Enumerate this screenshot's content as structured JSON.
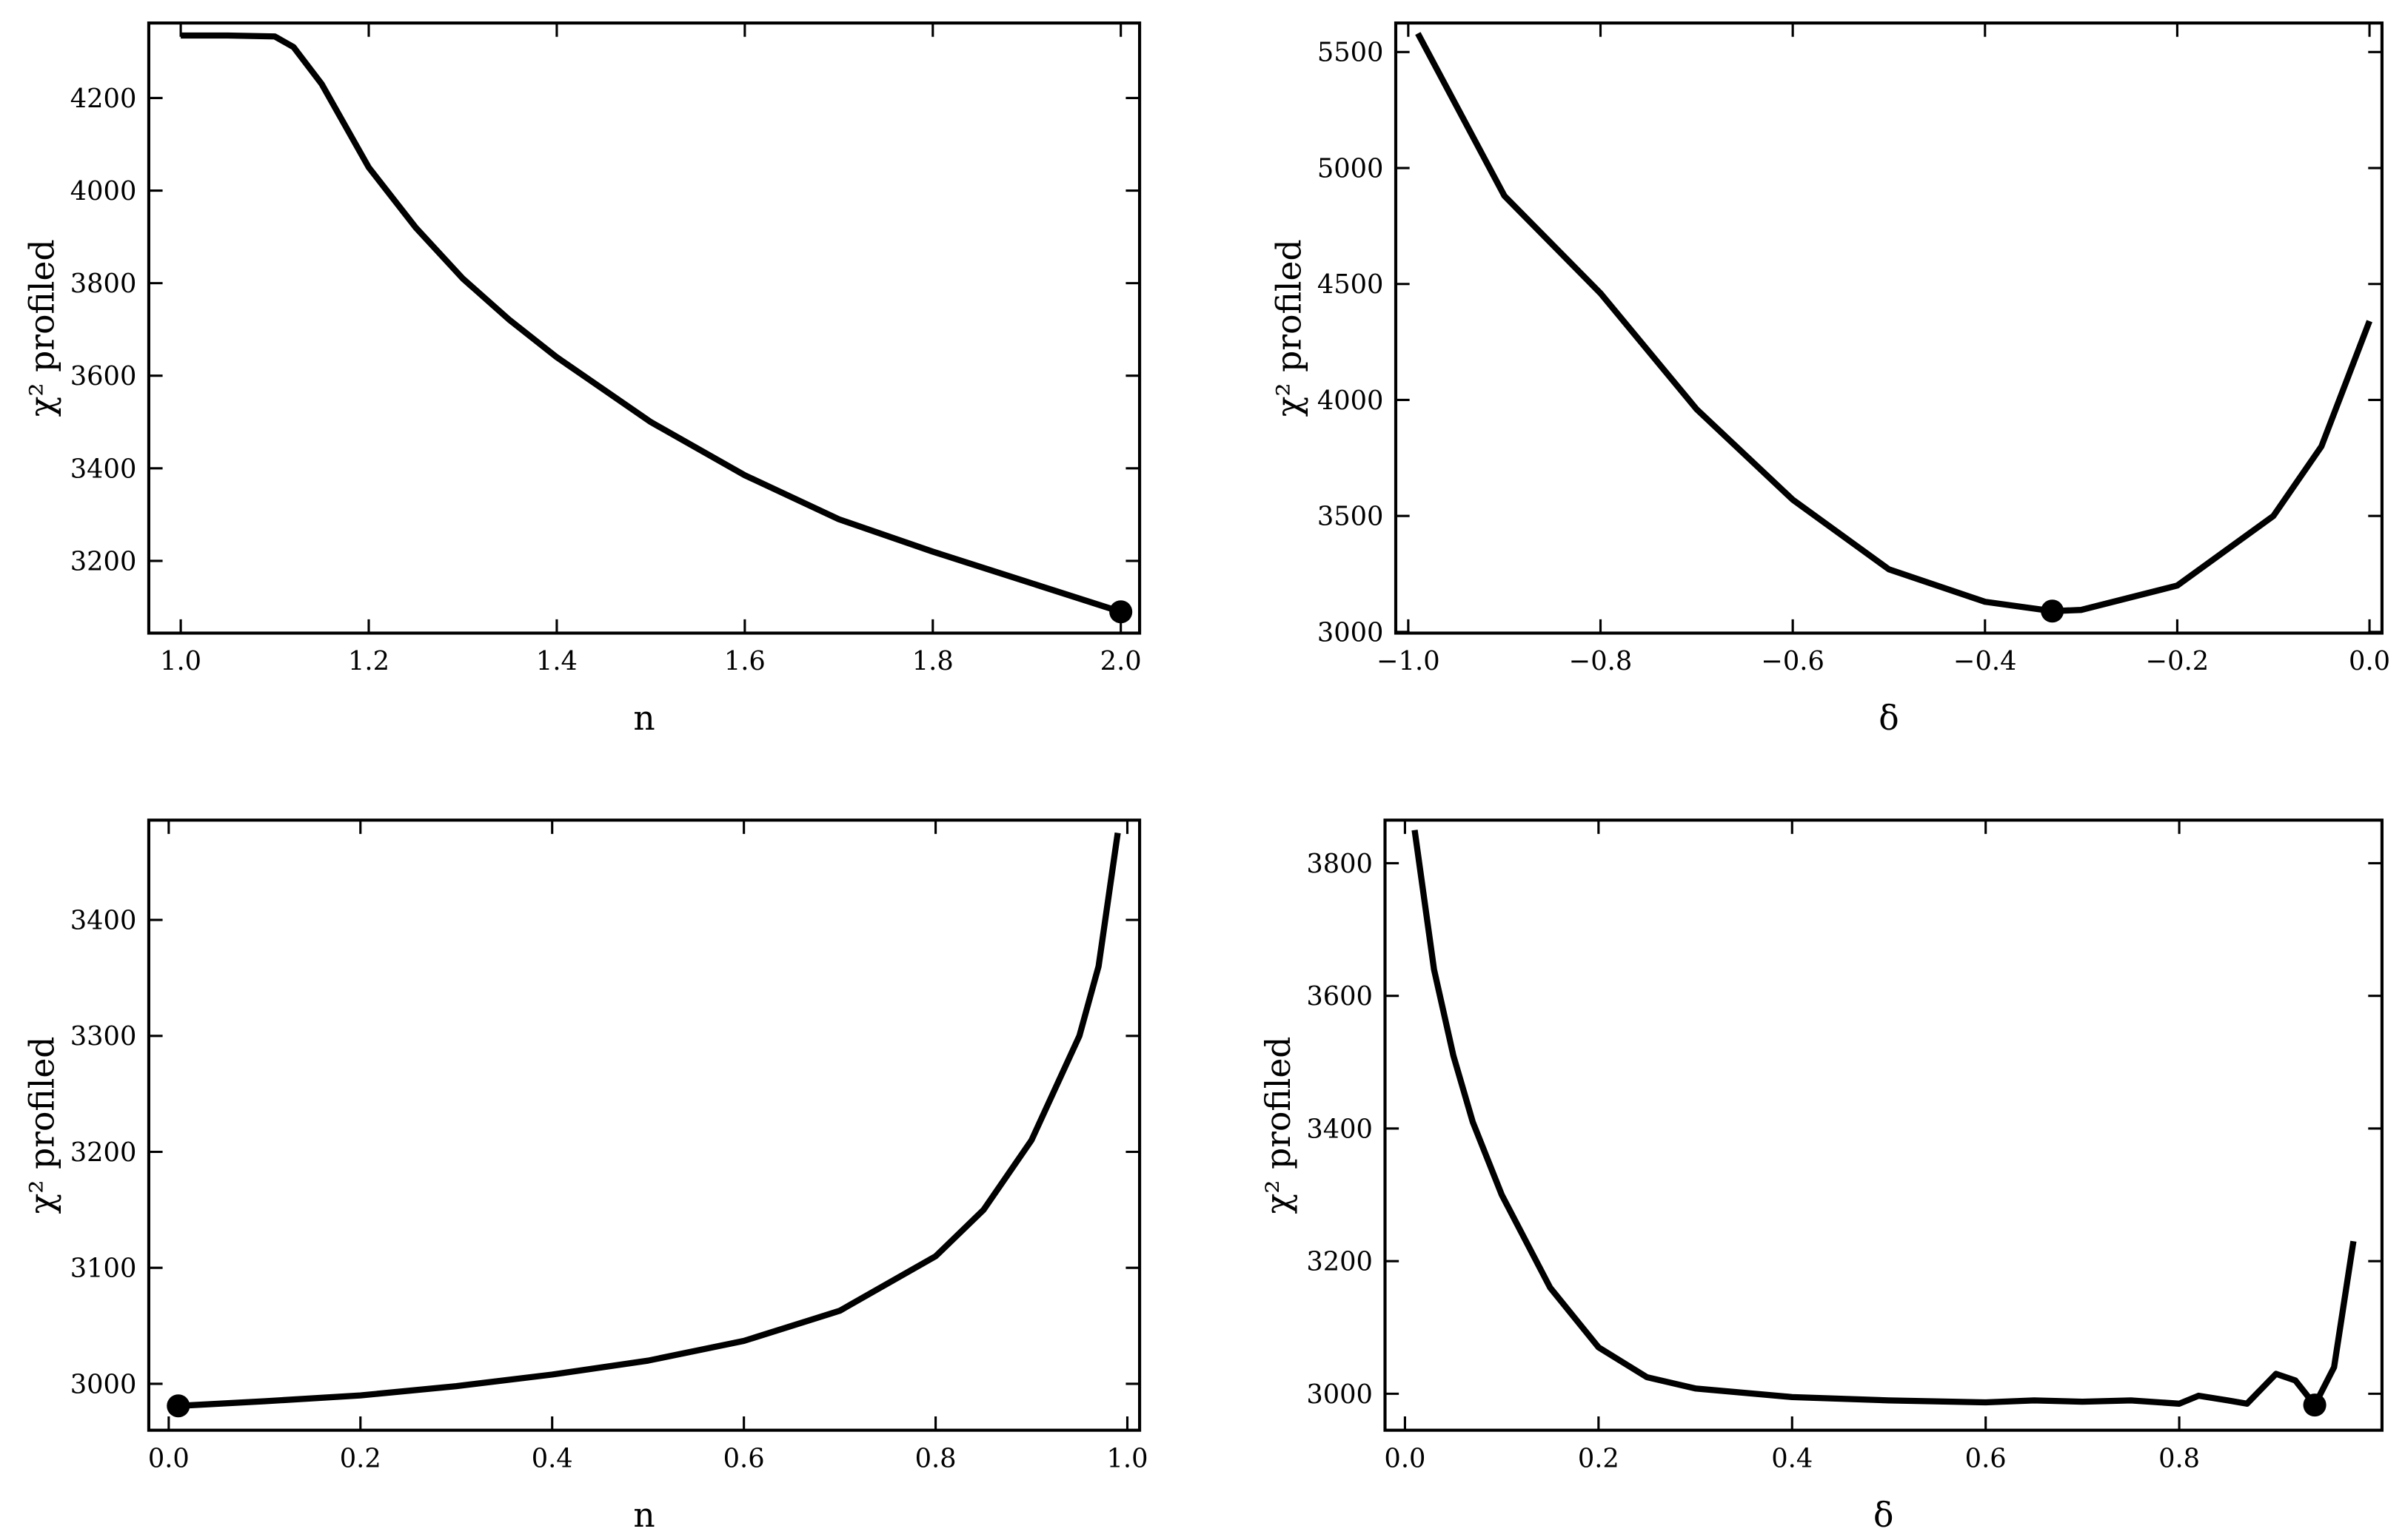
{
  "chart_data": [
    {
      "type": "line",
      "xlabel": "n",
      "ylabel": "χ² profiled",
      "x": [
        1.0,
        1.05,
        1.1,
        1.12,
        1.15,
        1.2,
        1.25,
        1.3,
        1.35,
        1.4,
        1.5,
        1.6,
        1.7,
        1.8,
        1.9,
        2.0
      ],
      "values": [
        4335,
        4335,
        4333,
        4310,
        4230,
        4050,
        3920,
        3810,
        3720,
        3640,
        3500,
        3385,
        3290,
        3220,
        3155,
        3090
      ],
      "marker": {
        "x": 2.0,
        "y": 3090
      },
      "color": "#000000",
      "xlim": [
        0.966,
        2.02
      ],
      "ylim": [
        3044,
        4362
      ],
      "xticks": [
        {
          "value": 1.0,
          "label": "1.0"
        },
        1.2,
        1.4,
        1.6,
        1.8,
        {
          "value": 2.0,
          "label": "2.0"
        }
      ],
      "yticks": [
        3200,
        3400,
        3600,
        3800,
        4000,
        4200
      ]
    },
    {
      "type": "line",
      "xlabel": "δ",
      "ylabel": "χ² profiled",
      "x": [
        -0.99,
        -0.9,
        -0.8,
        -0.7,
        -0.6,
        -0.5,
        -0.4,
        -0.33,
        -0.3,
        -0.2,
        -0.1,
        -0.05,
        0.0
      ],
      "values": [
        5580,
        4880,
        4460,
        3960,
        3570,
        3270,
        3130,
        3090,
        3095,
        3200,
        3500,
        3800,
        4340
      ],
      "marker": {
        "x": -0.33,
        "y": 3090
      },
      "color": "#000000",
      "xlim": [
        -1.013,
        0.013
      ],
      "ylim": [
        2995,
        5625
      ],
      "xticks": [
        {
          "value": -1.0,
          "label": "−1.0"
        },
        {
          "value": -0.8,
          "label": "−0.8"
        },
        {
          "value": -0.6,
          "label": "−0.6"
        },
        {
          "value": -0.4,
          "label": "−0.4"
        },
        {
          "value": -0.2,
          "label": "−0.2"
        },
        {
          "value": 0,
          "label": "0.0"
        }
      ],
      "yticks": [
        3000,
        3500,
        4000,
        4500,
        5000,
        5500
      ]
    },
    {
      "type": "line",
      "xlabel": "n",
      "ylabel": "χ² profiled",
      "x": [
        0.01,
        0.1,
        0.2,
        0.3,
        0.4,
        0.5,
        0.6,
        0.7,
        0.8,
        0.85,
        0.9,
        0.95,
        0.97,
        0.99
      ],
      "values": [
        2981,
        2985,
        2990,
        2998,
        3008,
        3020,
        3037,
        3063,
        3110,
        3150,
        3210,
        3300,
        3360,
        3475
      ],
      "marker": {
        "x": 0.01,
        "y": 2981
      },
      "color": "#000000",
      "xlim": [
        -0.0208,
        1.0128
      ],
      "ylim": [
        2960,
        3486
      ],
      "xticks": [
        {
          "value": 0,
          "label": "0.0"
        },
        0.2,
        0.4,
        0.6,
        0.8,
        {
          "value": 1,
          "label": "1.0"
        }
      ],
      "yticks": [
        3000,
        3100,
        3200,
        3300,
        3400
      ]
    },
    {
      "type": "line",
      "xlabel": "δ",
      "ylabel": "χ² profiled",
      "x": [
        0.01,
        0.03,
        0.05,
        0.07,
        0.1,
        0.15,
        0.2,
        0.25,
        0.3,
        0.4,
        0.5,
        0.6,
        0.65,
        0.7,
        0.75,
        0.8,
        0.82,
        0.85,
        0.87,
        0.9,
        0.92,
        0.94,
        0.96,
        0.98
      ],
      "values": [
        3850,
        3640,
        3510,
        3410,
        3300,
        3160,
        3070,
        3025,
        3008,
        2995,
        2990,
        2987,
        2990,
        2988,
        2990,
        2985,
        2997,
        2990,
        2985,
        3030,
        3020,
        2983,
        3040,
        3230
      ],
      "marker": {
        "x": 0.94,
        "y": 2983
      },
      "color": "#000000",
      "xlim": [
        -0.0206,
        1.0095
      ],
      "ylim": [
        2945,
        3865
      ],
      "xticks": [
        {
          "value": 0,
          "label": "0.0"
        },
        0.2,
        0.4,
        0.6,
        0.8
      ],
      "yticks": [
        3000,
        3200,
        3400,
        3600,
        3800
      ]
    }
  ]
}
